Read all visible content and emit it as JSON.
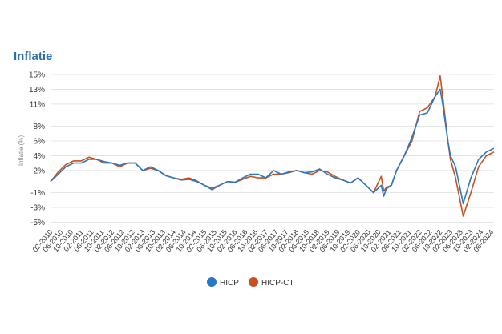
{
  "chart_data": {
    "type": "line",
    "title": "Inflatie",
    "ylabel": "Inflatie (%)",
    "xlabel": "",
    "ylim": [
      -5.5,
      15
    ],
    "y_ticks": [
      15,
      13,
      11,
      8,
      6,
      4,
      2,
      -1,
      -3,
      -5
    ],
    "y_tick_labels": [
      "15%",
      "13%",
      "11%",
      "8%",
      "6%",
      "4%",
      "2%",
      "-1%",
      "-3%",
      "-5%"
    ],
    "x_tick_labels": [
      "02-2010",
      "06-2010",
      "10-2010",
      "02-2011",
      "06-2011",
      "10-2011",
      "02-2012",
      "06-2012",
      "10-2012",
      "02-2013",
      "06-2013",
      "10-2013",
      "02-2014",
      "06-2014",
      "10-2014",
      "02-2015",
      "06-2015",
      "10-2015",
      "02-2016",
      "06-2016",
      "10-2016",
      "02-2017",
      "06-2017",
      "10-2017",
      "02-2018",
      "06-2018",
      "10-2018",
      "02-2019",
      "06-2019",
      "10-2019",
      "02-2020",
      "06-2020",
      "10-2020",
      "02-2021",
      "06-2021",
      "10-2021",
      "02-2022",
      "06-2022",
      "10-2022",
      "02-2023",
      "06-2023",
      "10-2023",
      "02-2024",
      "06-2024"
    ],
    "grid": true,
    "legend_position": "bottom",
    "x_key_months": [
      0,
      3,
      6,
      9,
      12,
      15,
      18,
      21,
      24,
      27,
      30,
      33,
      36,
      39,
      42,
      45,
      48,
      51,
      54,
      57,
      60,
      63,
      66,
      69,
      72,
      75,
      78,
      81,
      84,
      87,
      90,
      93,
      96,
      99,
      102,
      105,
      108,
      111,
      114,
      117,
      120,
      123,
      126,
      129,
      130,
      131,
      133,
      135,
      138,
      141,
      144,
      147,
      150,
      152,
      153,
      155,
      156,
      158,
      161,
      164,
      167,
      170,
      173
    ],
    "series": [
      {
        "name": "HICP",
        "color": "#2a78c4",
        "values": [
          0.5,
          1.5,
          2.5,
          3.0,
          3.0,
          3.5,
          3.5,
          3.2,
          3.0,
          2.7,
          3.0,
          3.0,
          2.0,
          2.5,
          2.0,
          1.3,
          1.0,
          0.7,
          0.8,
          0.5,
          0.0,
          -0.6,
          0.0,
          0.5,
          0.4,
          1.0,
          1.5,
          1.5,
          1.0,
          2.0,
          1.5,
          1.8,
          2.0,
          1.7,
          1.8,
          2.2,
          1.5,
          1.0,
          0.7,
          0.3,
          1.0,
          0.0,
          -1.0,
          0.0,
          -1.5,
          -0.5,
          0.0,
          2.0,
          4.0,
          6.5,
          9.5,
          9.8,
          12.0,
          13.0,
          11.0,
          6.0,
          4.0,
          2.5,
          -2.5,
          1.0,
          3.5,
          4.5,
          5.0
        ]
      },
      {
        "name": "HICP-CT",
        "color": "#c8501f",
        "values": [
          0.5,
          1.8,
          2.8,
          3.3,
          3.3,
          3.8,
          3.5,
          3.0,
          3.0,
          2.5,
          3.0,
          3.0,
          2.0,
          2.3,
          2.0,
          1.3,
          1.0,
          0.8,
          1.0,
          0.6,
          0.0,
          -0.4,
          0.0,
          0.5,
          0.4,
          0.8,
          1.2,
          1.0,
          1.0,
          1.5,
          1.5,
          1.7,
          2.0,
          1.7,
          1.5,
          2.0,
          1.8,
          1.2,
          0.7,
          0.3,
          1.0,
          0.0,
          -1.0,
          1.2,
          -0.8,
          -0.3,
          0.0,
          2.0,
          4.0,
          6.0,
          10.0,
          10.5,
          12.0,
          14.8,
          12.0,
          6.0,
          3.5,
          1.0,
          -4.2,
          -1.0,
          2.5,
          4.0,
          4.5
        ]
      }
    ]
  }
}
